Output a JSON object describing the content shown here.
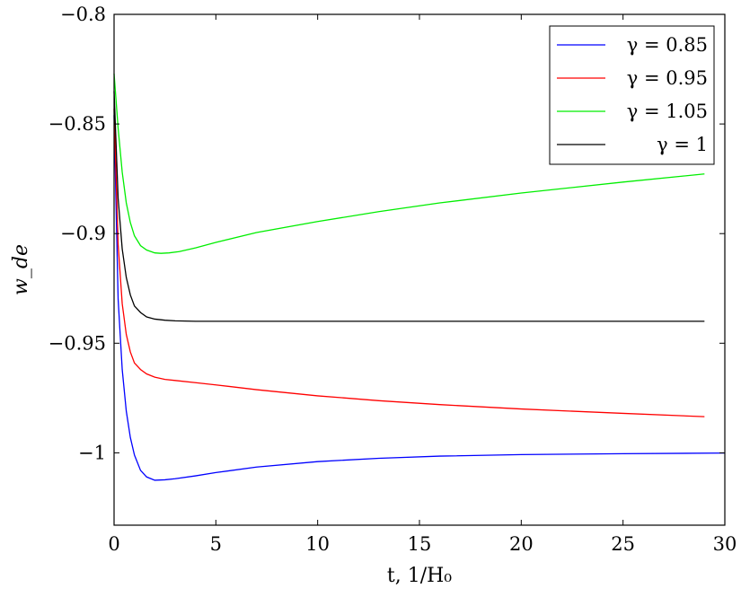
{
  "chart_data": {
    "type": "line",
    "xlabel": "t, 1/H₀",
    "ylabel": "w_de",
    "xlim": [
      0,
      30
    ],
    "ylim": [
      -1.033,
      -0.8
    ],
    "xticks": [
      0,
      5,
      10,
      15,
      20,
      25,
      30
    ],
    "xtick_labels": [
      "0",
      "5",
      "10",
      "15",
      "20",
      "25",
      "30"
    ],
    "yticks": [
      -0.8,
      -0.85,
      -0.9,
      -0.95,
      -1.0
    ],
    "ytick_labels": [
      "−0.8",
      "−0.85",
      "−0.9",
      "−0.95",
      "−1"
    ],
    "grid": false,
    "legend": "top-right",
    "series": [
      {
        "name": "γ = 0.85",
        "color": "#0000ff",
        "x": [
          0,
          0.2,
          0.4,
          0.6,
          0.8,
          1.0,
          1.3,
          1.6,
          2.0,
          2.5,
          3.0,
          4.0,
          5.0,
          7.0,
          10.0,
          13.0,
          16.0,
          20.0,
          25.0,
          30.0
        ],
        "y": [
          -0.846,
          -0.93,
          -0.962,
          -0.981,
          -0.993,
          -1.001,
          -1.008,
          -1.011,
          -1.0125,
          -1.0123,
          -1.0118,
          -1.0105,
          -1.009,
          -1.0065,
          -1.004,
          -1.0025,
          -1.0015,
          -1.0008,
          -1.0004,
          -1.0001
        ]
      },
      {
        "name": "γ = 0.95",
        "color": "#ff0000",
        "x": [
          0,
          0.2,
          0.4,
          0.6,
          0.8,
          1.0,
          1.3,
          1.6,
          2.0,
          2.5,
          3.0,
          4.0,
          5.0,
          7.0,
          10.0,
          13.0,
          16.0,
          20.0,
          25.0,
          29.0
        ],
        "y": [
          -0.843,
          -0.905,
          -0.932,
          -0.946,
          -0.954,
          -0.959,
          -0.962,
          -0.964,
          -0.9655,
          -0.9665,
          -0.967,
          -0.968,
          -0.969,
          -0.9712,
          -0.974,
          -0.9762,
          -0.978,
          -0.98,
          -0.982,
          -0.9835
        ]
      },
      {
        "name": "γ = 1.05",
        "color": "#00ee00",
        "x": [
          0,
          0.2,
          0.4,
          0.6,
          0.8,
          1.0,
          1.3,
          1.6,
          2.0,
          2.3,
          2.7,
          3.2,
          4.0,
          5.0,
          7.0,
          10.0,
          13.0,
          16.0,
          20.0,
          25.0,
          29.0
        ],
        "y": [
          -0.827,
          -0.852,
          -0.872,
          -0.886,
          -0.895,
          -0.901,
          -0.9055,
          -0.9075,
          -0.9088,
          -0.909,
          -0.9088,
          -0.9082,
          -0.9065,
          -0.904,
          -0.8995,
          -0.8945,
          -0.89,
          -0.886,
          -0.8815,
          -0.8765,
          -0.8728
        ]
      },
      {
        "name": "γ = 1",
        "color": "#000000",
        "x": [
          0,
          0.2,
          0.4,
          0.6,
          0.8,
          1.0,
          1.3,
          1.6,
          2.0,
          2.5,
          3.0,
          4.0,
          5.0,
          10.0,
          20.0,
          29.0
        ],
        "y": [
          -0.835,
          -0.884,
          -0.907,
          -0.92,
          -0.928,
          -0.933,
          -0.936,
          -0.938,
          -0.939,
          -0.9395,
          -0.9398,
          -0.94,
          -0.94,
          -0.94,
          -0.94,
          -0.94
        ]
      }
    ]
  }
}
